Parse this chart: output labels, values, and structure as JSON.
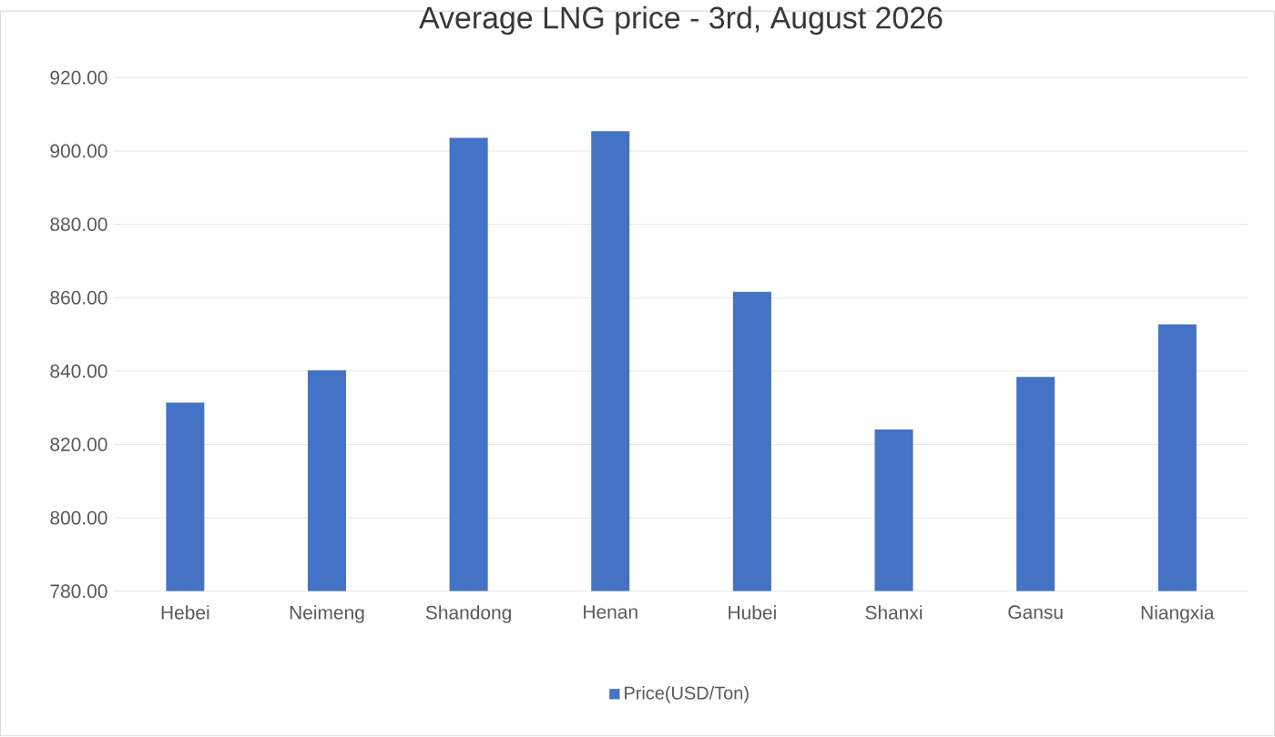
{
  "chart_data": {
    "type": "bar",
    "title": "Average LNG price - 3rd, August 2026",
    "categories": [
      "Hebei",
      "Neimeng",
      "Shandong",
      "Henan",
      "Hubei",
      "Shanxi",
      "Gansu",
      "Niangxia"
    ],
    "series": [
      {
        "name": "Price(USD/Ton)",
        "color": "#4472c4",
        "values": [
          831.4,
          840.2,
          903.6,
          905.4,
          861.6,
          824.1,
          838.4,
          852.7
        ]
      }
    ],
    "ylim": [
      780,
      920
    ],
    "yticks": [
      {
        "value": 780,
        "label": "780.00"
      },
      {
        "value": 800,
        "label": "800.00"
      },
      {
        "value": 820,
        "label": "820.00"
      },
      {
        "value": 840,
        "label": "840.00"
      },
      {
        "value": 860,
        "label": "860.00"
      },
      {
        "value": 880,
        "label": "880.00"
      },
      {
        "value": 900,
        "label": "900.00"
      },
      {
        "value": 920,
        "label": "920.00"
      }
    ],
    "grid": "y",
    "legend": "bottom"
  }
}
